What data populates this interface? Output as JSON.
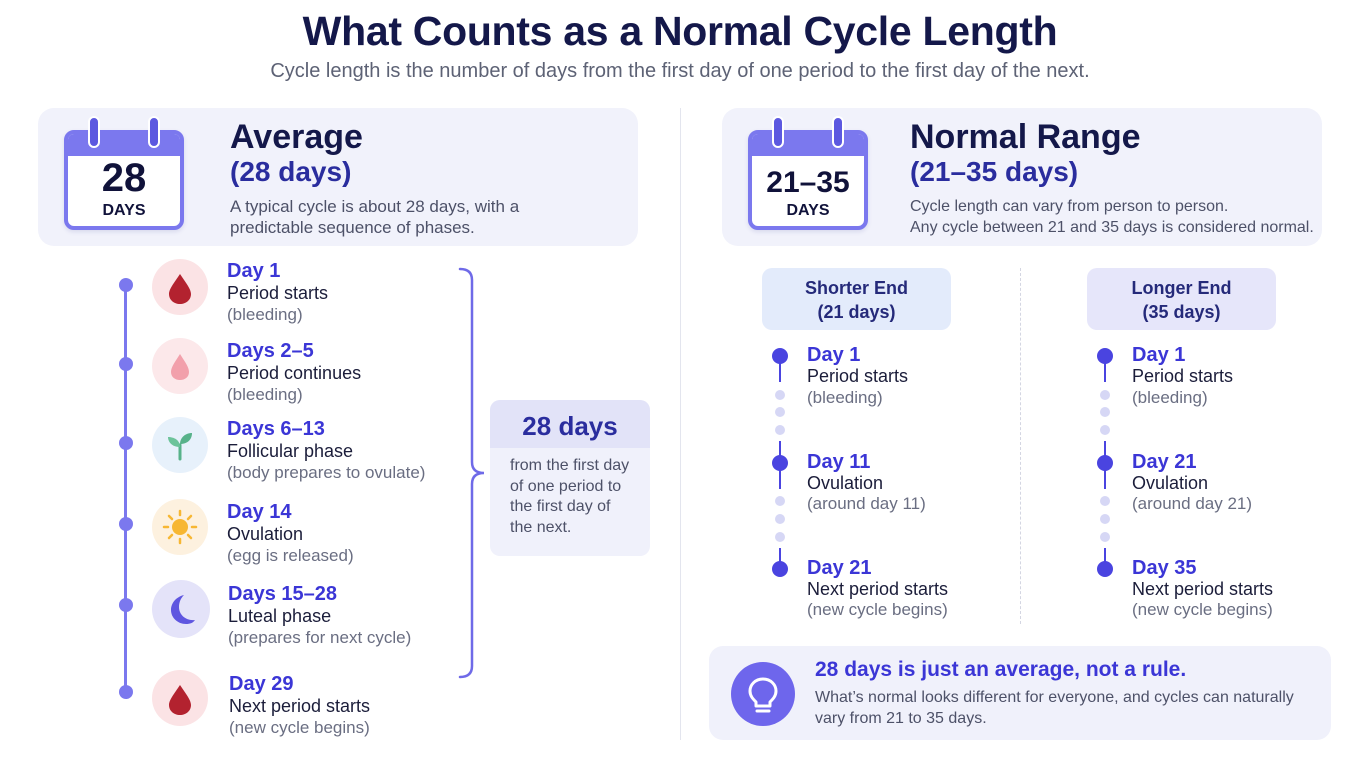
{
  "header": {
    "title": "What Counts as a Normal Cycle Length",
    "subtitle": "Cycle length is the number of days from the first day of one period to the first day of the next."
  },
  "average": {
    "calendar_number": "28",
    "calendar_label": "DAYS",
    "title": "Average",
    "subtitle": "(28 days)",
    "description_line1": "A typical cycle is about 28 days, with a",
    "description_line2": "predictable sequence of phases.",
    "events": [
      {
        "day": "Day 1",
        "text": "Period starts",
        "note": "(bleeding)",
        "icon": "blood-drop-icon"
      },
      {
        "day": "Days 2–5",
        "text": "Period continues",
        "note": "(bleeding)",
        "icon": "light-drop-icon"
      },
      {
        "day": "Days 6–13",
        "text": "Follicular phase",
        "note": "(body prepares to ovulate)",
        "icon": "sprout-icon"
      },
      {
        "day": "Day 14",
        "text": "Ovulation",
        "note": "(egg is released)",
        "icon": "sun-icon"
      },
      {
        "day": "Days 15–28",
        "text": "Luteal phase",
        "note": "(prepares for next cycle)",
        "icon": "moon-icon"
      },
      {
        "day": "Day 29",
        "text": "Next period starts",
        "note": "(new cycle begins)",
        "icon": "blood-drop-icon"
      }
    ],
    "callout": {
      "title": "28 days",
      "line1": "from the first day",
      "line2": "of one period to",
      "line3": "the first day of",
      "line4": "the next."
    }
  },
  "normal_range": {
    "calendar_number": "21–35",
    "calendar_label": "DAYS",
    "title": "Normal Range",
    "subtitle": "(21–35 days)",
    "description_line1": "Cycle length can vary from person to person.",
    "description_line2": "Any cycle between 21 and 35 days is considered normal.",
    "shorter": {
      "label_line1": "Shorter End",
      "label_line2": "(21 days)",
      "events": [
        {
          "day": "Day 1",
          "text": "Period starts",
          "note": "(bleeding)"
        },
        {
          "day": "Day 11",
          "text": "Ovulation",
          "note": "(around day 11)"
        },
        {
          "day": "Day 21",
          "text": "Next period starts",
          "note": "(new cycle begins)"
        }
      ]
    },
    "longer": {
      "label_line1": "Longer End",
      "label_line2": "(35 days)",
      "events": [
        {
          "day": "Day 1",
          "text": "Period starts",
          "note": "(bleeding)"
        },
        {
          "day": "Day 21",
          "text": "Ovulation",
          "note": "(around day 21)"
        },
        {
          "day": "Day 35",
          "text": "Next period starts",
          "note": "(new cycle begins)"
        }
      ]
    }
  },
  "tip": {
    "icon": "lightbulb-icon",
    "title": "28 days is just an average, not a rule.",
    "line1": "What’s normal looks different for everyone, and cycles can naturally",
    "line2": "vary from 21 to 35 days."
  },
  "colors": {
    "accent": "#3b36d6",
    "calendar": "#7b78ee",
    "blood": "#b3222f"
  }
}
